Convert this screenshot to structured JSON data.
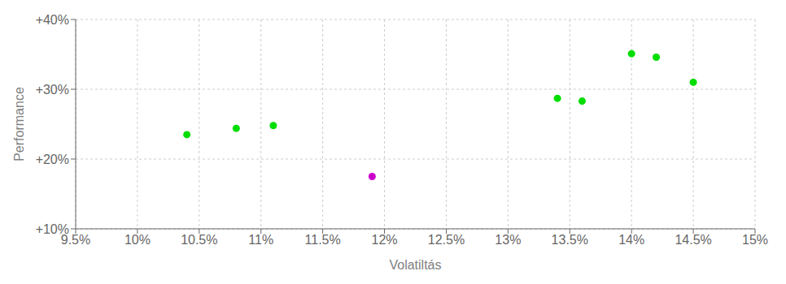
{
  "chart_data": {
    "type": "scatter",
    "xlabel": "Volatiltás",
    "ylabel": "Performance",
    "xlim": [
      0.095,
      0.15
    ],
    "ylim": [
      0.1,
      0.4
    ],
    "xticks": [
      {
        "value": 0.095,
        "label": "9.5%"
      },
      {
        "value": 0.1,
        "label": "10%"
      },
      {
        "value": 0.105,
        "label": "10.5%"
      },
      {
        "value": 0.11,
        "label": "11%"
      },
      {
        "value": 0.115,
        "label": "11.5%"
      },
      {
        "value": 0.12,
        "label": "12%"
      },
      {
        "value": 0.125,
        "label": "12.5%"
      },
      {
        "value": 0.13,
        "label": "13%"
      },
      {
        "value": 0.135,
        "label": "13.5%"
      },
      {
        "value": 0.14,
        "label": "14%"
      },
      {
        "value": 0.145,
        "label": "14.5%"
      },
      {
        "value": 0.15,
        "label": "15%"
      }
    ],
    "yticks": [
      {
        "value": 0.1,
        "label": "+10%"
      },
      {
        "value": 0.2,
        "label": "+20%"
      },
      {
        "value": 0.3,
        "label": "+30%"
      },
      {
        "value": 0.4,
        "label": "+40%"
      }
    ],
    "grid": true,
    "series": [
      {
        "color": "#00dd00",
        "x": [
          0.104,
          0.108,
          0.111,
          0.134,
          0.136,
          0.14,
          0.142,
          0.145
        ],
        "values": [
          0.235,
          0.244,
          0.248,
          0.287,
          0.283,
          0.351,
          0.346,
          0.31
        ]
      },
      {
        "color": "#cc00cc",
        "x": [
          0.119
        ],
        "values": [
          0.175
        ]
      }
    ]
  }
}
